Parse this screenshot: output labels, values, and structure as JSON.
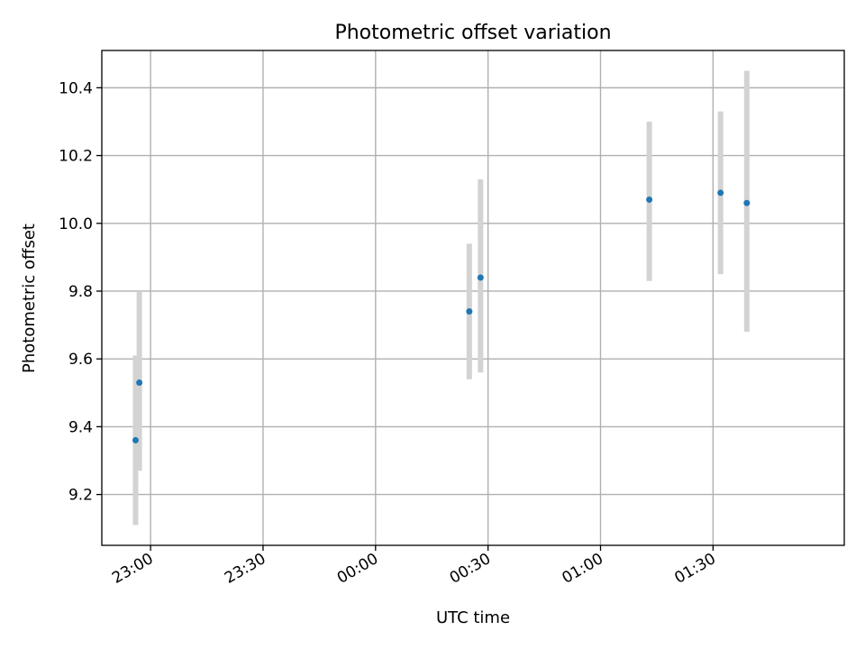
{
  "chart_data": {
    "type": "scatter",
    "title": "Photometric offset variation",
    "xlabel": "UTC time",
    "ylabel": "Photometric offset",
    "x_axis": {
      "type": "time",
      "ticks": [
        "23:00",
        "23:30",
        "00:00",
        "00:30",
        "01:00",
        "01:30"
      ]
    },
    "xlim": [
      "22:47",
      "02:05"
    ],
    "ylim": [
      9.05,
      10.51
    ],
    "y_ticks": [
      "9.2",
      "9.4",
      "9.6",
      "9.8",
      "10.0",
      "10.2",
      "10.4"
    ],
    "grid": true,
    "colors": {
      "point": "#1f77b4",
      "error_bar": "#d3d3d3"
    },
    "points": [
      {
        "x": "22:56",
        "y": 9.36,
        "err_low": 9.11,
        "err_high": 9.61
      },
      {
        "x": "22:57",
        "y": 9.53,
        "err_low": 9.27,
        "err_high": 9.8
      },
      {
        "x": "00:25",
        "y": 9.74,
        "err_low": 9.54,
        "err_high": 9.94
      },
      {
        "x": "00:28",
        "y": 9.84,
        "err_low": 9.56,
        "err_high": 10.13
      },
      {
        "x": "01:13",
        "y": 10.07,
        "err_low": 9.83,
        "err_high": 10.3
      },
      {
        "x": "01:32",
        "y": 10.09,
        "err_low": 9.85,
        "err_high": 10.33
      },
      {
        "x": "01:39",
        "y": 10.06,
        "err_low": 9.68,
        "err_high": 10.45
      }
    ]
  }
}
